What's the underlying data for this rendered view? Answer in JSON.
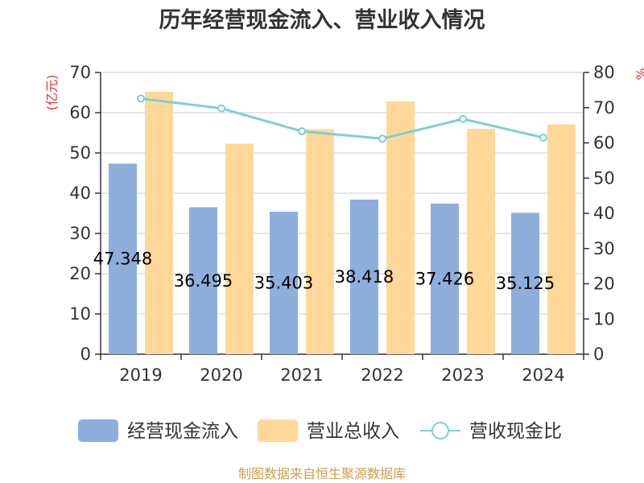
{
  "chart_data": {
    "type": "bar",
    "title": "历年经营现金流入、营业收入情况",
    "y_left_unit": "(亿元)",
    "y_right_unit": "%",
    "categories": [
      "2019",
      "2020",
      "2021",
      "2022",
      "2023",
      "2024"
    ],
    "y_left_lim": [
      0,
      70
    ],
    "y_left_ticks": [
      0,
      10,
      20,
      30,
      40,
      50,
      60,
      70
    ],
    "y_right_lim": [
      0,
      80
    ],
    "y_right_ticks": [
      0,
      10,
      20,
      30,
      40,
      50,
      60,
      70,
      80
    ],
    "grid": true,
    "legend_position": "bottom",
    "series": [
      {
        "name": "经营现金流入",
        "type": "bar",
        "axis": "left",
        "color": "#8eaedb",
        "values": [
          47.348,
          36.495,
          35.403,
          38.418,
          37.426,
          35.125
        ],
        "labels": [
          "47.348",
          "36.495",
          "35.403",
          "38.418",
          "37.426",
          "35.125"
        ]
      },
      {
        "name": "营业总收入",
        "type": "bar",
        "axis": "left",
        "color": "#ffd899",
        "values": [
          65.2,
          52.3,
          55.9,
          62.8,
          56.0,
          57.1
        ]
      },
      {
        "name": "营收现金比",
        "type": "line",
        "axis": "right",
        "color": "#7ecfd4",
        "values": [
          72.6,
          69.8,
          63.3,
          61.2,
          66.8,
          61.5
        ]
      }
    ],
    "source": "制图数据来自恒生聚源数据库"
  }
}
